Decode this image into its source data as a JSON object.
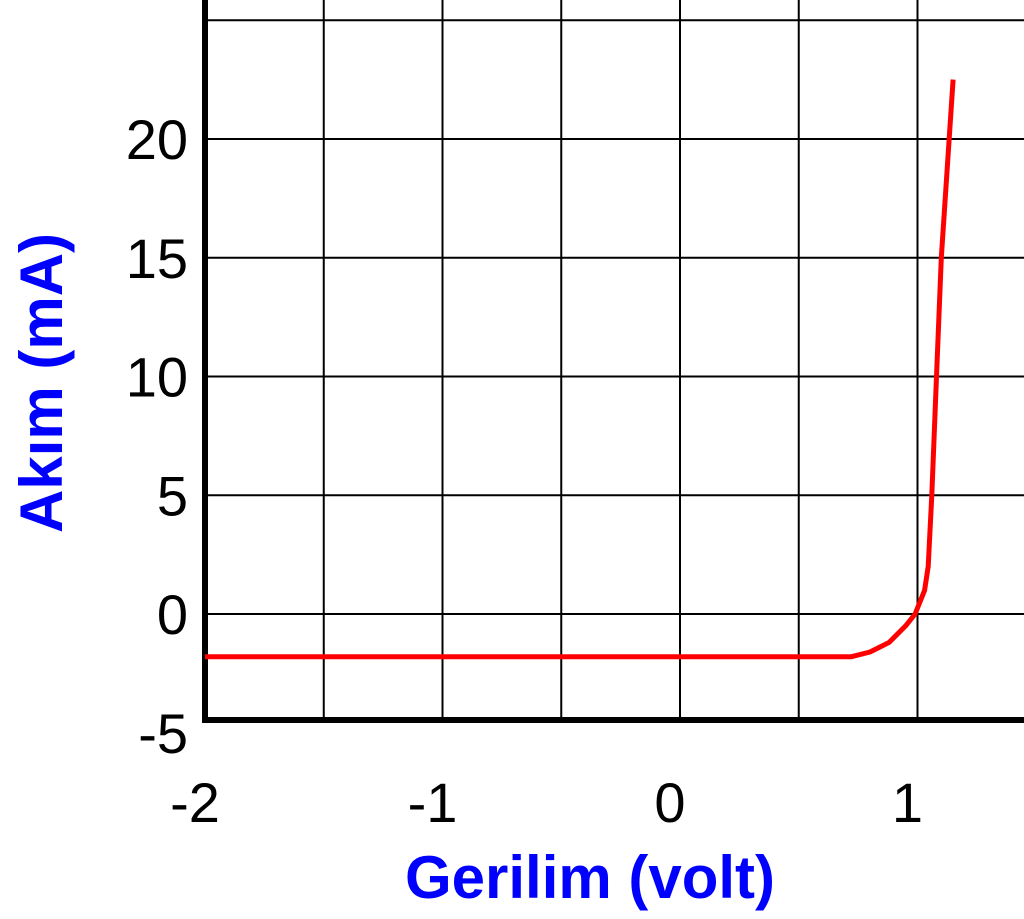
{
  "chart_data": {
    "type": "line",
    "xlabel": "Gerilim (volt)",
    "ylabel": "Akım (mA)",
    "xlim": [
      -2,
      1.5
    ],
    "ylim": [
      -5,
      25
    ],
    "x_ticks": [
      -2,
      -1,
      0,
      1
    ],
    "y_ticks": [
      -5,
      0,
      5,
      10,
      15,
      20
    ],
    "x_tick_labels": [
      "-2",
      "-1",
      "0",
      "1"
    ],
    "y_tick_labels": [
      "-5",
      "0",
      "5",
      "10",
      "15",
      "20"
    ],
    "x_gridlines": [
      -1.5,
      -1,
      -0.5,
      0,
      0.5,
      1
    ],
    "y_gridlines": [
      0,
      5,
      10,
      15,
      20,
      25
    ],
    "grid": true,
    "series": [
      {
        "color": "#ff0000",
        "x": [
          -2,
          0.72,
          0.8,
          0.88,
          0.95,
          0.99,
          1.01,
          1.03,
          1.045,
          1.06,
          1.08,
          1.1,
          1.15
        ],
        "y": [
          -1.8,
          -1.8,
          -1.6,
          -1.2,
          -0.5,
          0.0,
          0.5,
          1.0,
          2.0,
          5.0,
          10.0,
          15.0,
          22.5
        ]
      }
    ]
  },
  "colors": {
    "axis_title": "#0000ff",
    "grid": "#000000",
    "axis": "#000000"
  }
}
